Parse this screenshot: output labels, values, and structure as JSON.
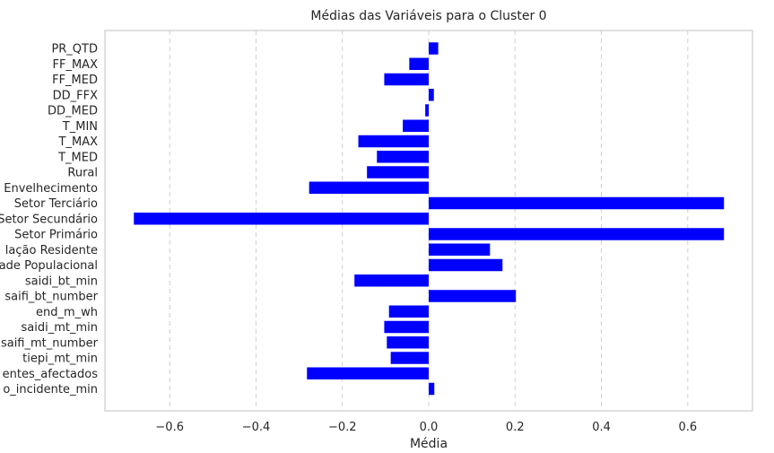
{
  "chart_data": {
    "type": "bar",
    "orientation": "horizontal",
    "title": "Médias das Variáveis para o Cluster 0",
    "xlabel": "Média",
    "ylabel": "",
    "xlim": [
      -0.75,
      0.75
    ],
    "xticks": [
      -0.6,
      -0.4,
      -0.2,
      0.0,
      0.2,
      0.4,
      0.6
    ],
    "xtick_labels": [
      "−0.6",
      "−0.4",
      "−0.2",
      "0.0",
      "0.2",
      "0.4",
      "0.6"
    ],
    "grid": "x, dashed",
    "bar_color": "#0000ff",
    "categories": [
      "PR_QTD",
      "FF_MAX",
      "FF_MED",
      "DD_FFX",
      "DD_MED",
      "T_MIN",
      "T_MAX",
      "T_MED",
      "Rural",
      "Envelhecimento",
      "Setor Terciário",
      "Setor Secundário",
      "Setor Primário",
      "lação Residente",
      "ade Populacional",
      "saidi_bt_min",
      "saifi_bt_number",
      "end_m_wh",
      "saidi_mt_min",
      "saifi_mt_number",
      "tiepi_mt_min",
      "entes_afectados",
      "o_incidente_min"
    ],
    "values": [
      0.022,
      -0.045,
      -0.103,
      0.012,
      -0.008,
      -0.06,
      -0.163,
      -0.12,
      -0.143,
      -0.277,
      0.684,
      -0.683,
      0.684,
      0.142,
      0.171,
      -0.172,
      0.202,
      -0.092,
      -0.103,
      -0.097,
      -0.088,
      -0.282,
      0.013
    ]
  }
}
